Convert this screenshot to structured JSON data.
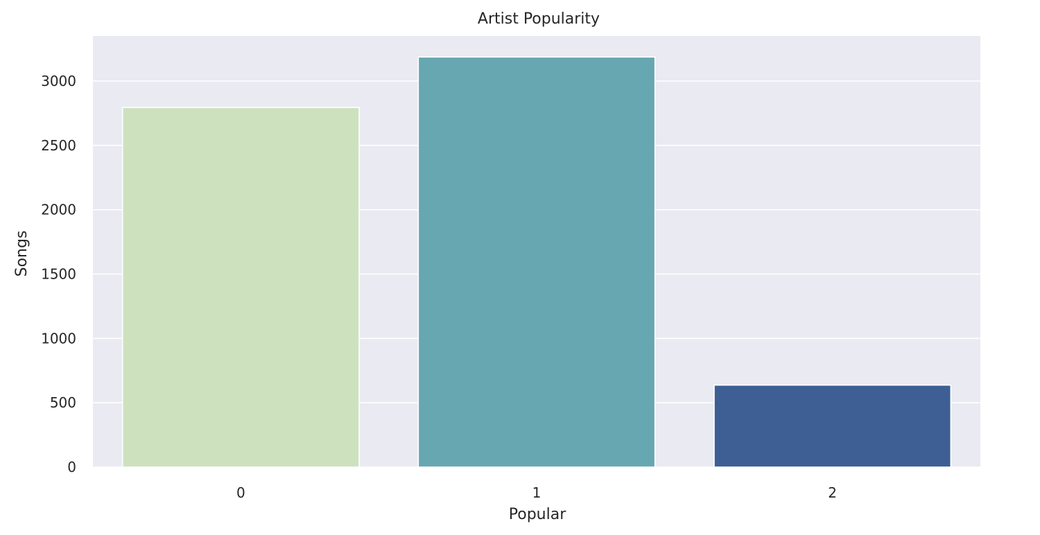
{
  "chart_data": {
    "type": "bar",
    "title": "Artist Popularity",
    "xlabel": "Popular",
    "ylabel": "Songs",
    "categories": [
      "0",
      "1",
      "2"
    ],
    "values": [
      2795,
      3187,
      637
    ],
    "bar_colors": [
      "#cde1bf",
      "#67a7b2",
      "#3e5f94"
    ],
    "ylim": [
      0,
      3350
    ],
    "yticks": [
      0,
      500,
      1000,
      1500,
      2000,
      2500,
      3000
    ],
    "ytick_labels": [
      "0",
      "500",
      "1000",
      "1500",
      "2000",
      "2500",
      "3000"
    ],
    "grid": true,
    "background_color": "#eaeaf2",
    "grid_color": "#ffffff"
  }
}
